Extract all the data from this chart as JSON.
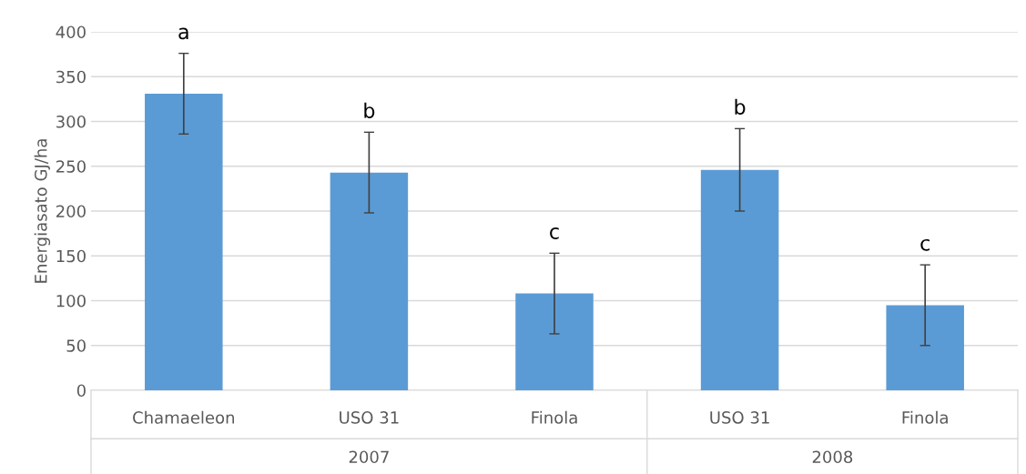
{
  "chart_data": {
    "type": "bar",
    "ylabel": "Energiasato GJ/ha",
    "categories": [
      "Chamaeleon",
      "USO 31",
      "Finola",
      "USO 31",
      "Finola"
    ],
    "values": [
      331,
      243,
      108,
      246,
      95
    ],
    "errors": [
      45,
      45,
      45,
      46,
      45
    ],
    "color": "#5b9bd5",
    "ylim": [
      0,
      400
    ],
    "yticks": [
      0,
      50,
      100,
      150,
      200,
      250,
      300,
      350,
      400
    ],
    "grid": "y",
    "annotations": [
      "a",
      "b",
      "c",
      "b",
      "c",
      "2007",
      "2008"
    ]
  }
}
